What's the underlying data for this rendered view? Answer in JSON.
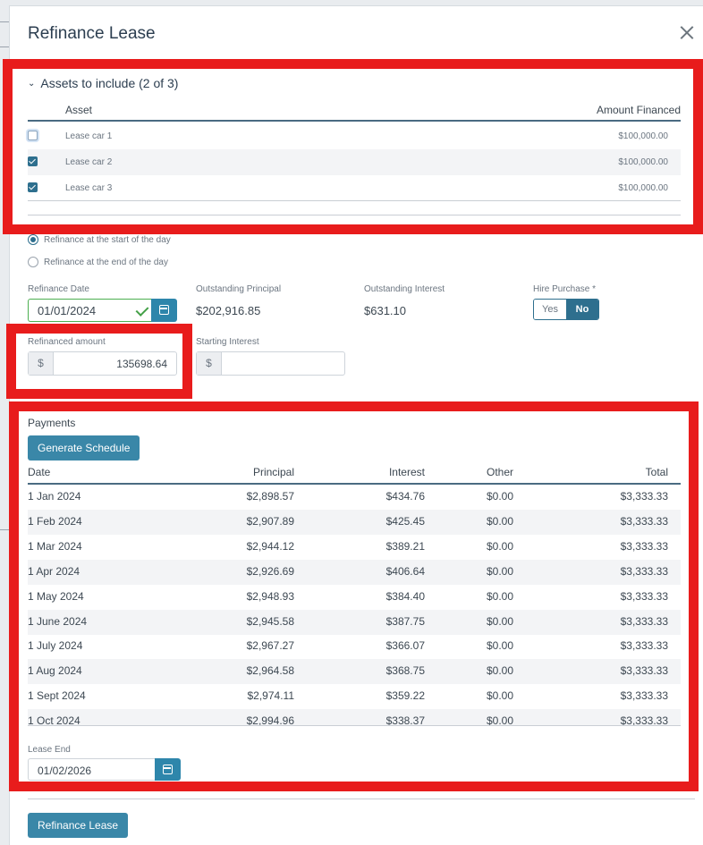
{
  "modal": {
    "title": "Refinance Lease"
  },
  "assets": {
    "heading": "Assets to include (2 of 3)",
    "col_asset": "Asset",
    "col_amount": "Amount Financed",
    "rows": [
      {
        "name": "Lease car 1",
        "amount": "$100,000.00",
        "checked": false
      },
      {
        "name": "Lease car 2",
        "amount": "$100,000.00",
        "checked": true
      },
      {
        "name": "Lease car 3",
        "amount": "$100,000.00",
        "checked": true
      }
    ]
  },
  "refinance_timing": {
    "start": "Refinance at the start of the day",
    "end": "Refinance at the end of the day",
    "selected": "start"
  },
  "refinance_date": {
    "label": "Refinance Date",
    "value": "01/01/2024"
  },
  "outstanding_principal": {
    "label": "Outstanding Principal",
    "value": "$202,916.85"
  },
  "outstanding_interest": {
    "label": "Outstanding Interest",
    "value": "$631.10"
  },
  "hire_purchase": {
    "label": "Hire Purchase *",
    "yes": "Yes",
    "no": "No",
    "selected": "No"
  },
  "refinanced_amount": {
    "label": "Refinanced amount",
    "currency": "$",
    "value": "135698.64"
  },
  "starting_interest": {
    "label": "Starting Interest",
    "currency": "$",
    "value": ""
  },
  "payments": {
    "title": "Payments",
    "generate_label": "Generate Schedule",
    "columns": {
      "date": "Date",
      "principal": "Principal",
      "interest": "Interest",
      "other": "Other",
      "total": "Total"
    },
    "rows": [
      {
        "date": "1 Jan 2024",
        "principal": "$2,898.57",
        "interest": "$434.76",
        "other": "$0.00",
        "total": "$3,333.33"
      },
      {
        "date": "1 Feb 2024",
        "principal": "$2,907.89",
        "interest": "$425.45",
        "other": "$0.00",
        "total": "$3,333.33"
      },
      {
        "date": "1 Mar 2024",
        "principal": "$2,944.12",
        "interest": "$389.21",
        "other": "$0.00",
        "total": "$3,333.33"
      },
      {
        "date": "1 Apr 2024",
        "principal": "$2,926.69",
        "interest": "$406.64",
        "other": "$0.00",
        "total": "$3,333.33"
      },
      {
        "date": "1 May 2024",
        "principal": "$2,948.93",
        "interest": "$384.40",
        "other": "$0.00",
        "total": "$3,333.33"
      },
      {
        "date": "1 June 2024",
        "principal": "$2,945.58",
        "interest": "$387.75",
        "other": "$0.00",
        "total": "$3,333.33"
      },
      {
        "date": "1 July 2024",
        "principal": "$2,967.27",
        "interest": "$366.07",
        "other": "$0.00",
        "total": "$3,333.33"
      },
      {
        "date": "1 Aug 2024",
        "principal": "$2,964.58",
        "interest": "$368.75",
        "other": "$0.00",
        "total": "$3,333.33"
      },
      {
        "date": "1 Sept 2024",
        "principal": "$2,974.11",
        "interest": "$359.22",
        "other": "$0.00",
        "total": "$3,333.33"
      },
      {
        "date": "1 Oct 2024",
        "principal": "$2,994.96",
        "interest": "$338.37",
        "other": "$0.00",
        "total": "$3,333.33"
      }
    ]
  },
  "lease_end": {
    "label": "Lease End",
    "value": "01/02/2026"
  },
  "footer": {
    "submit_label": "Refinance Lease"
  },
  "colors": {
    "annotation_red": "#e81c1c",
    "primary": "#2e86ab",
    "valid_green": "#43a047"
  }
}
